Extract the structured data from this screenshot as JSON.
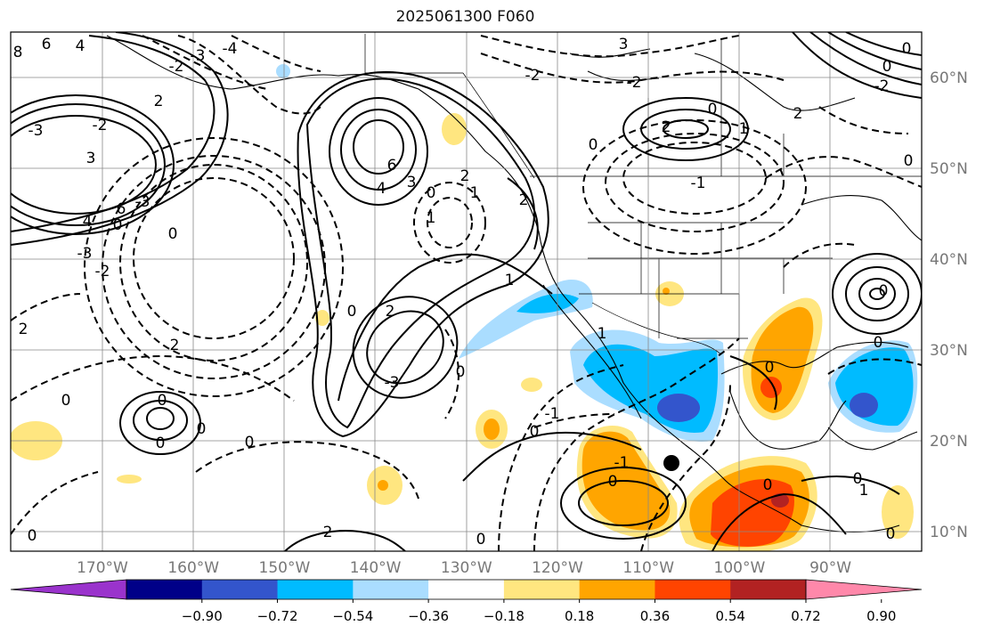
{
  "title": "2025061300 F060",
  "map": {
    "lon_labels": [
      "170°W",
      "160°W",
      "150°W",
      "140°W",
      "130°W",
      "120°W",
      "110°W",
      "100°W",
      "90°W"
    ],
    "lat_labels": [
      "60°N",
      "50°N",
      "40°N",
      "30°N",
      "20°N",
      "10°N"
    ],
    "contour_labels": [
      "8",
      "6",
      "4",
      "-2",
      "-3",
      "-4",
      "2",
      "-3",
      "-2",
      "3",
      "4",
      "6",
      "-3",
      "0",
      "-2",
      "-3",
      "6",
      "4",
      "3",
      "0",
      "1",
      "2",
      "1",
      "2",
      "0",
      "2",
      "-3",
      "2",
      "2",
      "0",
      "0",
      "0",
      "0",
      "0",
      "2",
      "1",
      "0",
      "1",
      "0",
      "3",
      "-2",
      "0",
      "0",
      "2",
      "1",
      "-1",
      "2",
      "0",
      "0",
      "0",
      "-2",
      "-1",
      "0",
      "-1",
      "0",
      "0",
      "0",
      "0",
      "1",
      "0",
      "0",
      "0",
      "0",
      "-2",
      "0",
      "-2"
    ],
    "storm_marker": "point"
  },
  "colorbar": {
    "tick_labels": [
      "−0.90",
      "−0.72",
      "−0.54",
      "−0.36",
      "−0.18",
      "0.18",
      "0.36",
      "0.54",
      "0.72",
      "0.90"
    ],
    "colors": [
      "#9a33cc",
      "#000088",
      "#3355cc",
      "#00bbff",
      "#aaddff",
      "#ffffff",
      "#ffe680",
      "#ffa500",
      "#ff4400",
      "#b22222",
      "#ff88aa"
    ]
  }
}
